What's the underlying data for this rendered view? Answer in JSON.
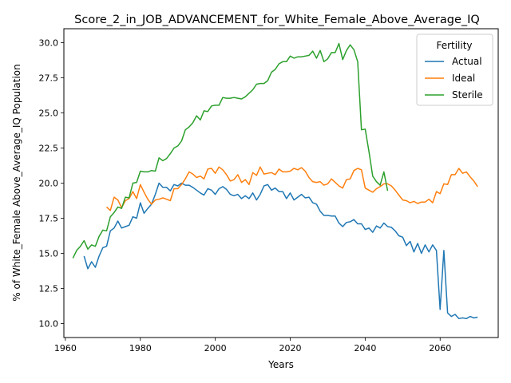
{
  "chart_data": {
    "type": "line",
    "title": "Score_2_in_JOB_ADVANCEMENT_for_White_Female_Above_Average_IQ",
    "xlabel": "Years",
    "ylabel": "% of White_Female Above_Average_IQ Population",
    "xlim": [
      1959.6,
      2075.5
    ],
    "ylim": [
      9.0,
      31.0
    ],
    "xticks": [
      1960,
      1980,
      2000,
      2020,
      2040,
      2060
    ],
    "yticks": [
      10.0,
      12.5,
      15.0,
      17.5,
      20.0,
      22.5,
      25.0,
      27.5,
      30.0
    ],
    "grid": false,
    "legend": {
      "title": "Fertility",
      "position": "top-right"
    },
    "series": [
      {
        "name": "Actual",
        "color": "#1f77b4",
        "x": [
          1965,
          1966,
          1967,
          1968,
          1969,
          1970,
          1971,
          1972,
          1973,
          1974,
          1975,
          1976,
          1977,
          1978,
          1979,
          1980,
          1981,
          1982,
          1983,
          1984,
          1985,
          1986,
          1987,
          1988,
          1989,
          1990,
          1991,
          1992,
          1993,
          1994,
          1995,
          1996,
          1997,
          1998,
          1999,
          2000,
          2001,
          2002,
          2003,
          2004,
          2005,
          2006,
          2007,
          2008,
          2009,
          2010,
          2011,
          2012,
          2013,
          2014,
          2015,
          2016,
          2017,
          2018,
          2019,
          2020,
          2021,
          2022,
          2023,
          2024,
          2025,
          2026,
          2027,
          2028,
          2029,
          2030,
          2031,
          2032,
          2033,
          2034,
          2035,
          2036,
          2037,
          2038,
          2039,
          2040,
          2041,
          2042,
          2043,
          2044,
          2045,
          2046,
          2047,
          2048,
          2049,
          2050,
          2051,
          2052,
          2053,
          2054,
          2055,
          2056,
          2057,
          2058,
          2059,
          2060,
          2061,
          2062,
          2063,
          2064,
          2065,
          2066,
          2067,
          2068,
          2069,
          2070
        ],
        "y": [
          14.8,
          13.9,
          14.4,
          14.0,
          14.8,
          15.4,
          15.5,
          16.6,
          16.8,
          17.3,
          16.8,
          16.9,
          17.0,
          17.6,
          17.5,
          18.6,
          17.85,
          18.2,
          18.5,
          19.2,
          20.0,
          19.7,
          19.7,
          19.45,
          19.9,
          19.8,
          20.0,
          19.85,
          19.85,
          19.7,
          19.5,
          19.3,
          19.15,
          19.6,
          19.5,
          19.2,
          19.6,
          19.75,
          19.55,
          19.2,
          19.1,
          19.2,
          18.9,
          19.1,
          18.9,
          19.3,
          18.8,
          19.2,
          19.8,
          19.9,
          19.5,
          19.65,
          19.4,
          19.4,
          18.9,
          19.3,
          18.8,
          19.0,
          19.2,
          18.95,
          19.0,
          18.6,
          18.5,
          18.0,
          17.7,
          17.7,
          17.65,
          17.65,
          17.15,
          16.9,
          17.2,
          17.25,
          17.4,
          17.1,
          17.1,
          16.7,
          16.8,
          16.5,
          16.95,
          16.8,
          17.15,
          16.9,
          16.85,
          16.6,
          16.25,
          16.15,
          15.55,
          15.85,
          15.1,
          15.7,
          15.0,
          15.6,
          15.1,
          15.6,
          15.2,
          11.0,
          15.2,
          10.75,
          10.5,
          10.65,
          10.35,
          10.4,
          10.35,
          10.5,
          10.4,
          10.45
        ]
      },
      {
        "name": "Ideal",
        "color": "#ff7f0e",
        "x": [
          1971,
          1972,
          1973,
          1974,
          1975,
          1976,
          1977,
          1978,
          1979,
          1980,
          1981,
          1982,
          1983,
          1984,
          1985,
          1986,
          1987,
          1988,
          1989,
          1990,
          1991,
          1992,
          1993,
          1994,
          1995,
          1996,
          1997,
          1998,
          1999,
          2000,
          2001,
          2002,
          2003,
          2004,
          2005,
          2006,
          2007,
          2008,
          2009,
          2010,
          2011,
          2012,
          2013,
          2014,
          2015,
          2016,
          2017,
          2018,
          2019,
          2020,
          2021,
          2022,
          2023,
          2024,
          2025,
          2026,
          2027,
          2028,
          2029,
          2030,
          2031,
          2032,
          2033,
          2034,
          2035,
          2036,
          2037,
          2038,
          2039,
          2040,
          2041,
          2042,
          2043,
          2044,
          2045,
          2046,
          2047,
          2048,
          2049,
          2050,
          2051,
          2052,
          2053,
          2054,
          2055,
          2056,
          2057,
          2058,
          2059,
          2060,
          2061,
          2062,
          2063,
          2064,
          2065,
          2066,
          2067,
          2068,
          2069,
          2070
        ],
        "y": [
          18.3,
          18.05,
          19.0,
          18.8,
          18.25,
          18.75,
          18.9,
          19.4,
          18.9,
          19.9,
          19.35,
          18.85,
          18.5,
          18.8,
          18.85,
          18.95,
          18.85,
          18.75,
          19.6,
          19.6,
          19.9,
          20.3,
          20.8,
          20.65,
          20.4,
          20.5,
          20.3,
          21.0,
          21.05,
          20.7,
          21.15,
          20.95,
          20.6,
          20.15,
          20.25,
          20.6,
          20.05,
          20.25,
          19.9,
          20.75,
          20.55,
          21.15,
          20.65,
          20.7,
          20.75,
          20.6,
          21.0,
          20.8,
          20.8,
          20.85,
          21.05,
          20.95,
          21.1,
          20.85,
          20.4,
          20.1,
          20.05,
          20.1,
          19.85,
          19.95,
          20.3,
          20.05,
          19.8,
          19.65,
          20.25,
          20.3,
          20.9,
          21.05,
          20.95,
          19.65,
          19.5,
          19.35,
          19.6,
          19.75,
          19.95,
          19.95,
          19.8,
          19.5,
          19.15,
          18.8,
          18.75,
          18.6,
          18.7,
          18.55,
          18.65,
          18.65,
          18.85,
          18.6,
          19.4,
          19.25,
          19.95,
          19.9,
          20.6,
          20.6,
          21.05,
          20.7,
          20.8,
          20.45,
          20.15,
          19.75
        ]
      },
      {
        "name": "Sterile",
        "color": "#2ca02c",
        "x": [
          1962,
          1963,
          1964,
          1965,
          1966,
          1967,
          1968,
          1969,
          1970,
          1971,
          1972,
          1973,
          1974,
          1975,
          1976,
          1977,
          1978,
          1979,
          1980,
          1981,
          1982,
          1983,
          1984,
          1985,
          1986,
          1987,
          1988,
          1989,
          1990,
          1991,
          1992,
          1993,
          1994,
          1995,
          1996,
          1997,
          1998,
          1999,
          2000,
          2001,
          2002,
          2003,
          2004,
          2005,
          2006,
          2007,
          2008,
          2009,
          2010,
          2011,
          2012,
          2013,
          2014,
          2015,
          2016,
          2017,
          2018,
          2019,
          2020,
          2021,
          2022,
          2023,
          2024,
          2025,
          2026,
          2027,
          2028,
          2029,
          2030,
          2031,
          2032,
          2033,
          2034,
          2035,
          2036,
          2037,
          2038,
          2039,
          2040,
          2041,
          2042,
          2043,
          2044,
          2045,
          2046
        ],
        "y": [
          14.65,
          15.2,
          15.5,
          15.9,
          15.3,
          15.6,
          15.5,
          16.2,
          16.65,
          16.6,
          17.6,
          17.9,
          18.3,
          18.2,
          19.0,
          18.95,
          20.0,
          20.05,
          20.85,
          20.8,
          20.8,
          20.9,
          20.85,
          21.8,
          21.6,
          21.75,
          22.1,
          22.5,
          22.65,
          23.0,
          23.8,
          24.0,
          24.3,
          24.8,
          24.5,
          25.15,
          25.1,
          25.5,
          25.55,
          25.55,
          26.1,
          26.05,
          26.05,
          26.1,
          26.05,
          26.0,
          26.15,
          26.4,
          26.65,
          27.05,
          27.1,
          27.1,
          27.3,
          27.9,
          28.1,
          28.5,
          28.65,
          28.65,
          29.05,
          28.9,
          29.0,
          29.0,
          29.05,
          29.1,
          29.4,
          28.9,
          29.45,
          28.65,
          28.85,
          29.3,
          29.3,
          29.95,
          28.8,
          29.45,
          29.85,
          29.5,
          28.65,
          23.8,
          23.85,
          22.25,
          20.5,
          20.1,
          19.85,
          20.8,
          19.45
        ]
      }
    ]
  }
}
